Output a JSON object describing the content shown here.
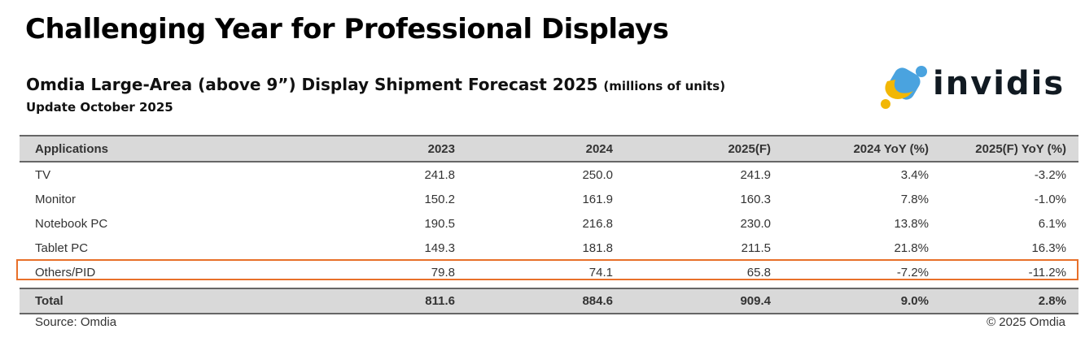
{
  "title": "Challenging Year for Professional Displays",
  "subtitle": "Omdia Large-Area (above 9”) Display Shipment Forecast 2025",
  "unit": "(millions of units)",
  "update": "Update October 2025",
  "logo": {
    "text": "invidis",
    "colors": {
      "blue": "#4aa3df",
      "yellow": "#f2b705",
      "dark": "#111a22"
    }
  },
  "table": {
    "headers": [
      "Applications",
      "2023",
      "2024",
      "2025(F)",
      "2024 YoY (%)",
      "2025(F) YoY (%)"
    ],
    "rows": [
      [
        "TV",
        "241.8",
        "250.0",
        "241.9",
        "3.4%",
        "-3.2%"
      ],
      [
        "Monitor",
        "150.2",
        "161.9",
        "160.3",
        "7.8%",
        "-1.0%"
      ],
      [
        "Notebook PC",
        "190.5",
        "216.8",
        "230.0",
        "13.8%",
        "6.1%"
      ],
      [
        "Tablet PC",
        "149.3",
        "181.8",
        "211.5",
        "21.8%",
        "16.3%"
      ],
      [
        "Others/PID",
        "79.8",
        "74.1",
        "65.8",
        "-7.2%",
        "-11.2%"
      ]
    ],
    "total": [
      "Total",
      "811.6",
      "884.6",
      "909.4",
      "9.0%",
      "2.8%"
    ],
    "highlight_color": "#e8702a"
  },
  "source": "Source: Omdia",
  "copyright": "© 2025 Omdia"
}
